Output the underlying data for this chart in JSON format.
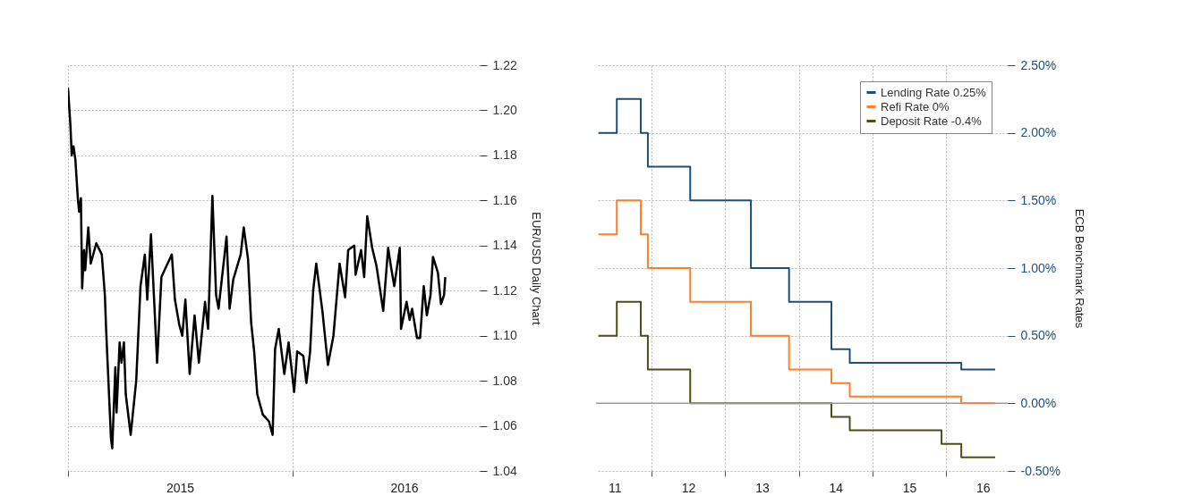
{
  "chart_data": [
    {
      "type": "line",
      "ylabel": "EUR/USD Daily Chart",
      "x": [
        "2015-01-01",
        "2015-01-05",
        "2015-01-07",
        "2015-01-10",
        "2015-01-13",
        "2015-01-17",
        "2015-01-19",
        "2015-01-22",
        "2015-01-24",
        "2015-01-27",
        "2015-01-29",
        "2015-02-03",
        "2015-02-07",
        "2015-02-16",
        "2015-02-25",
        "2015-03-02",
        "2015-03-04",
        "2015-03-12",
        "2015-03-14",
        "2015-03-19",
        "2015-03-21",
        "2015-03-26",
        "2015-03-29",
        "2015-04-02",
        "2015-04-05",
        "2015-04-13",
        "2015-04-22",
        "2015-04-29",
        "2015-05-06",
        "2015-05-10",
        "2015-05-16",
        "2015-05-22",
        "2015-05-26",
        "2015-06-02",
        "2015-06-12",
        "2015-06-19",
        "2015-06-24",
        "2015-07-01",
        "2015-07-06",
        "2015-07-11",
        "2015-07-18",
        "2015-07-26",
        "2015-08-02",
        "2015-08-12",
        "2015-08-17",
        "2015-08-24",
        "2015-08-30",
        "2015-09-03",
        "2015-09-12",
        "2015-09-16",
        "2015-09-21",
        "2015-09-27",
        "2015-10-09",
        "2015-10-14",
        "2015-10-21",
        "2015-10-26",
        "2015-10-31",
        "2015-11-05",
        "2015-11-14",
        "2015-11-24",
        "2015-11-30",
        "2015-12-04",
        "2015-12-10",
        "2015-12-19",
        "2015-12-26",
        "2016-01-04",
        "2016-01-09",
        "2016-01-19",
        "2016-01-24",
        "2016-01-30",
        "2016-02-04",
        "2016-02-09",
        "2016-02-19",
        "2016-02-28",
        "2016-03-08",
        "2016-03-18",
        "2016-03-27",
        "2016-04-01",
        "2016-04-11",
        "2016-04-13",
        "2016-04-22",
        "2016-04-27",
        "2016-05-02",
        "2016-05-10",
        "2016-05-17",
        "2016-05-22",
        "2016-05-28",
        "2016-06-05",
        "2016-06-10",
        "2016-06-15",
        "2016-06-24",
        "2016-06-26",
        "2016-07-05",
        "2016-07-10",
        "2016-07-14",
        "2016-07-22",
        "2016-07-27",
        "2016-08-02",
        "2016-08-07",
        "2016-08-13",
        "2016-08-17",
        "2016-08-25",
        "2016-08-30",
        "2016-09-04",
        "2016-09-06"
      ],
      "series": [
        {
          "color": "#000000",
          "values": [
            1.21,
            1.193,
            1.18,
            1.184,
            1.178,
            1.161,
            1.155,
            1.161,
            1.121,
            1.138,
            1.129,
            1.148,
            1.132,
            1.141,
            1.136,
            1.118,
            1.103,
            1.054,
            1.05,
            1.086,
            1.066,
            1.097,
            1.088,
            1.097,
            1.074,
            1.056,
            1.08,
            1.122,
            1.136,
            1.116,
            1.145,
            1.111,
            1.088,
            1.126,
            1.132,
            1.136,
            1.116,
            1.105,
            1.1,
            1.116,
            1.083,
            1.109,
            1.088,
            1.115,
            1.103,
            1.162,
            1.118,
            1.112,
            1.134,
            1.144,
            1.112,
            1.125,
            1.136,
            1.148,
            1.134,
            1.106,
            1.093,
            1.074,
            1.065,
            1.062,
            1.056,
            1.094,
            1.103,
            1.083,
            1.097,
            1.075,
            1.093,
            1.091,
            1.079,
            1.093,
            1.12,
            1.132,
            1.111,
            1.087,
            1.1,
            1.132,
            1.117,
            1.138,
            1.14,
            1.127,
            1.138,
            1.126,
            1.153,
            1.139,
            1.131,
            1.122,
            1.111,
            1.139,
            1.13,
            1.122,
            1.139,
            1.103,
            1.115,
            1.107,
            1.112,
            1.099,
            1.099,
            1.122,
            1.109,
            1.118,
            1.135,
            1.128,
            1.114,
            1.118,
            1.126
          ]
        }
      ],
      "xlim": [
        "2015-01-01",
        "2016-11-01"
      ],
      "xticks": [
        {
          "value": "2015-01-01",
          "label": null
        },
        {
          "value": "2015-07-02",
          "label": "2015"
        },
        {
          "value": "2016-01-01",
          "label": null
        },
        {
          "value": "2016-07-01",
          "label": "2016"
        }
      ],
      "ylim": [
        1.04,
        1.22
      ],
      "yticks": [
        1.04,
        1.06,
        1.08,
        {
          "value": 1.1,
          "label": "1.10"
        },
        1.12,
        1.14,
        1.16,
        1.18,
        {
          "value": 1.2,
          "label": "1.20"
        },
        1.22
      ],
      "grid": true
    },
    {
      "type": "step",
      "ylabel": "ECB Benchmark Rates",
      "x": [
        "2011-04-13",
        "2011-07-13",
        "2011-11-09",
        "2011-12-14",
        "2012-07-11",
        "2013-05-08",
        "2013-11-13",
        "2014-06-11",
        "2014-09-10",
        "2015-12-09",
        "2016-03-16",
        "2016-08-31"
      ],
      "series": [
        {
          "name": "Lending Rate 0.25%",
          "color": "#1f4e79",
          "values": [
            2.0,
            2.25,
            2.0,
            1.75,
            1.5,
            1.0,
            0.75,
            0.4,
            0.3,
            0.3,
            0.25,
            0.25
          ]
        },
        {
          "name": "Refi Rate 0%",
          "color": "#ff7f27",
          "values": [
            1.25,
            1.5,
            1.25,
            1.0,
            0.75,
            0.5,
            0.25,
            0.15,
            0.05,
            0.05,
            0.0,
            0.0
          ]
        },
        {
          "name": "Deposit Rate -0.4%",
          "color": "#4d4d1a",
          "values": [
            0.5,
            0.75,
            0.5,
            0.25,
            0.0,
            0.0,
            0.0,
            -0.1,
            -0.2,
            -0.3,
            -0.4,
            -0.4
          ]
        }
      ],
      "xlim": [
        "2011-04-01",
        "2016-11-01"
      ],
      "xticks": [
        {
          "value": "2011-07-02",
          "label": "11"
        },
        {
          "value": "2012-01-01",
          "label": null
        },
        {
          "value": "2012-07-01",
          "label": "12"
        },
        {
          "value": "2013-01-01",
          "label": null
        },
        {
          "value": "2013-07-02",
          "label": "13"
        },
        {
          "value": "2014-01-01",
          "label": null
        },
        {
          "value": "2014-07-02",
          "label": "14"
        },
        {
          "value": "2015-01-01",
          "label": null
        },
        {
          "value": "2015-07-02",
          "label": "15"
        },
        {
          "value": "2016-01-01",
          "label": null
        },
        {
          "value": "2016-07-01",
          "label": "16"
        }
      ],
      "ylim": [
        -0.5,
        2.5
      ],
      "yticks": [
        {
          "value": -0.5,
          "label": "-0.50%"
        },
        {
          "value": 0,
          "label": "0.00%"
        },
        {
          "value": 0.5,
          "label": "0.50%"
        },
        {
          "value": 1,
          "label": "1.00%"
        },
        {
          "value": 1.5,
          "label": "1.50%"
        },
        {
          "value": 2,
          "label": "2.00%"
        },
        {
          "value": 2.5,
          "label": "2.50%"
        }
      ],
      "ref_lines": [
        {
          "axis": "y",
          "value": 0,
          "color": "#999999"
        }
      ],
      "grid": true,
      "legend": "top right"
    }
  ]
}
